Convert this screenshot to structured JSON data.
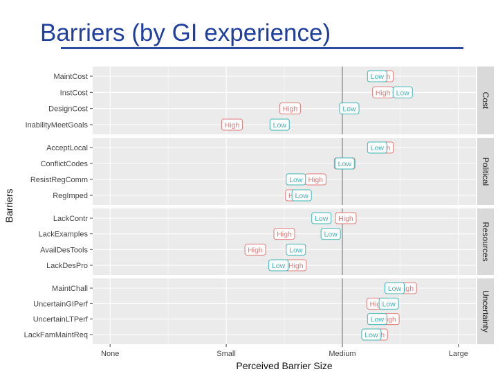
{
  "page": {
    "title": "Barriers (by GI experience)"
  },
  "colors": {
    "high": "#e07a7a",
    "low": "#3fb6b6",
    "panel_bg": "#ebebeb",
    "strip_bg": "#d9d9d9",
    "title": "#1f3f9e",
    "medium_line": "#999999"
  },
  "chart_data": {
    "type": "scatter",
    "xlabel": "Perceived Barrier Size",
    "ylabel": "Barriers",
    "x_ticks": [
      "None",
      "Small",
      "Medium",
      "Large"
    ],
    "x_tick_values": [
      0,
      1,
      2,
      3
    ],
    "xlim": [
      -0.15,
      3.15
    ],
    "reference_line": 2,
    "series": [
      "High",
      "Low"
    ],
    "facets": [
      {
        "label": "Cost",
        "barriers": [
          {
            "name": "MaintCost",
            "High": 2.35,
            "Low": 2.3
          },
          {
            "name": "InstCost",
            "High": 2.35,
            "Low": 2.52
          },
          {
            "name": "DesignCost",
            "High": 1.55,
            "Low": 2.06
          },
          {
            "name": "InabilityMeetGoals",
            "High": 1.05,
            "Low": 1.46
          }
        ]
      },
      {
        "label": "Political",
        "barriers": [
          {
            "name": "AcceptLocal",
            "High": 2.35,
            "Low": 2.3
          },
          {
            "name": "ConflictCodes",
            "High": 2.02,
            "Low": 2.02
          },
          {
            "name": "ResistRegComm",
            "High": 1.77,
            "Low": 1.6
          },
          {
            "name": "RegImped",
            "High": 1.6,
            "Low": 1.65
          }
        ]
      },
      {
        "label": "Resources",
        "barriers": [
          {
            "name": "LackContr",
            "High": 2.03,
            "Low": 1.82
          },
          {
            "name": "LackExamples",
            "High": 1.5,
            "Low": 1.9
          },
          {
            "name": "AvailDesTools",
            "High": 1.25,
            "Low": 1.6
          },
          {
            "name": "LackDesPro",
            "High": 1.6,
            "Low": 1.45
          }
        ]
      },
      {
        "label": "Uncertainty",
        "barriers": [
          {
            "name": "MaintChall",
            "High": 2.55,
            "Low": 2.45
          },
          {
            "name": "UncertainGIPerf",
            "High": 2.3,
            "Low": 2.4
          },
          {
            "name": "UncertainLTPerf",
            "High": 2.4,
            "Low": 2.3
          },
          {
            "name": "LackFamMaintReq",
            "High": 2.3,
            "Low": 2.25
          }
        ]
      }
    ]
  }
}
